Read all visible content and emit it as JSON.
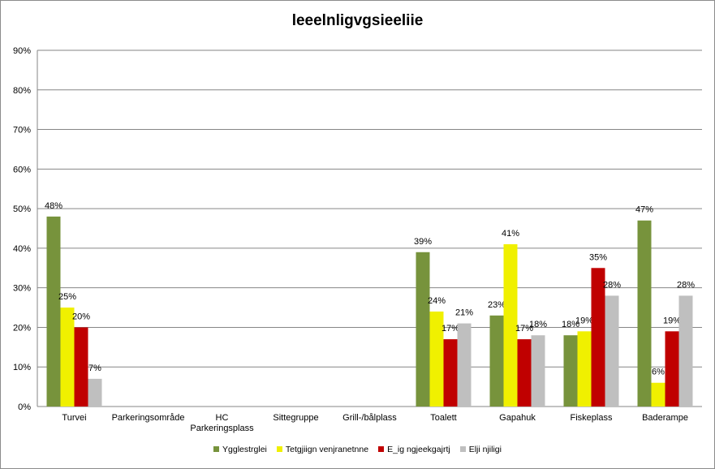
{
  "chart_data": {
    "type": "bar",
    "title": "leeelnligvgsieeliie",
    "xlabel": "",
    "ylabel": "",
    "ylim": [
      0,
      90
    ],
    "ytick_step": 10,
    "ytick_labels": [
      "0%",
      "10%",
      "20%",
      "30%",
      "40%",
      "50%",
      "60%",
      "70%",
      "80%",
      "90%"
    ],
    "grid": true,
    "legend_position": "bottom",
    "categories": [
      "Turvei",
      "Parkeringsområde",
      "HC Parkeringsplass",
      "Sittegruppe",
      "Grill-/bålplass",
      "Toalett",
      "Gapahuk",
      "Fiskeplass",
      "Baderampe"
    ],
    "series": [
      {
        "name": "Ygglestrglei",
        "color": "#77933c",
        "values": [
          48,
          null,
          null,
          null,
          null,
          39,
          23,
          18,
          47
        ],
        "labels": [
          "48%",
          "",
          "",
          "",
          "",
          "39%",
          "23%",
          "18%",
          "47%"
        ]
      },
      {
        "name": "Tetgjiign venjranetnne",
        "color": "#f0f000",
        "values": [
          25,
          null,
          null,
          null,
          null,
          24,
          41,
          19,
          6
        ],
        "labels": [
          "25%",
          "",
          "",
          "",
          "",
          "24%",
          "41%",
          "19%",
          "6%"
        ]
      },
      {
        "name": "E_ig ngjeekgajrtj",
        "color": "#c00000",
        "values": [
          20,
          null,
          null,
          null,
          null,
          17,
          17,
          35,
          19
        ],
        "labels": [
          "20%",
          "",
          "",
          "",
          "",
          "17%",
          "17%",
          "35%",
          "19%"
        ]
      },
      {
        "name": "Elji njiligi",
        "color": "#bfbfbf",
        "values": [
          7,
          null,
          null,
          null,
          null,
          21,
          18,
          28,
          28
        ],
        "labels": [
          "7%",
          "",
          "",
          "",
          "",
          "21%",
          "18%",
          "28%",
          "28%"
        ]
      }
    ]
  }
}
